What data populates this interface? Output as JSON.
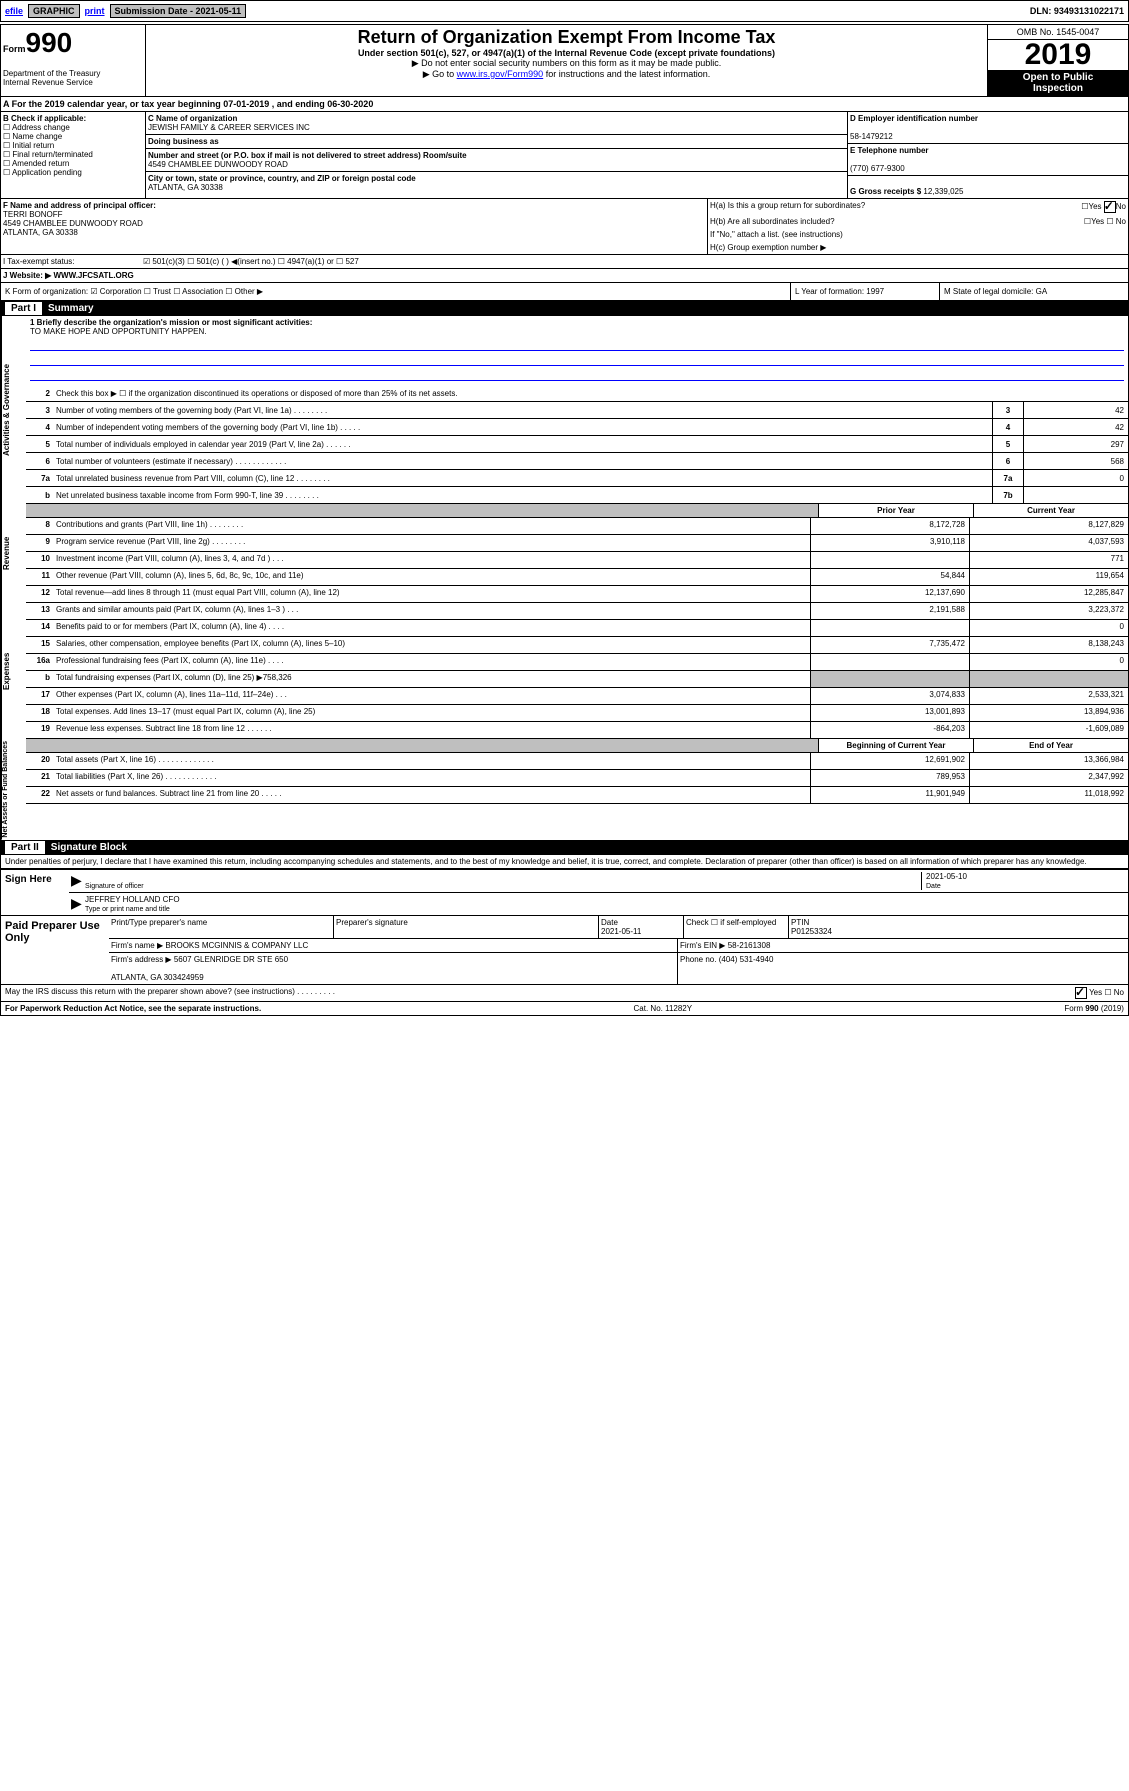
{
  "topbar": {
    "efile": "efile",
    "graphic": "GRAPHIC",
    "print": "print",
    "submission_label": "Submission Date - 2021-05-11",
    "dln": "DLN: 93493131022171"
  },
  "header": {
    "form_label": "Form",
    "form_num": "990",
    "title": "Return of Organization Exempt From Income Tax",
    "subtitle": "Under section 501(c), 527, or 4947(a)(1) of the Internal Revenue Code (except private foundations)",
    "note1": "▶ Do not enter social security numbers on this form as it may be made public.",
    "note2_pre": "▶ Go to ",
    "note2_link": "www.irs.gov/Form990",
    "note2_post": " for instructions and the latest information.",
    "dept": "Department of the Treasury\nInternal Revenue Service",
    "omb": "OMB No. 1545-0047",
    "year": "2019",
    "open": "Open to Public\nInspection"
  },
  "period": "A For the 2019 calendar year, or tax year beginning 07-01-2019     , and ending 06-30-2020",
  "b": {
    "label": "B Check if applicable:",
    "items": [
      "☐ Address change",
      "☐ Name change",
      "☐ Initial return",
      "☐ Final return/terminated",
      "☐ Amended return",
      "☐ Application pending"
    ]
  },
  "c": {
    "name_label": "C Name of organization",
    "name": "JEWISH FAMILY & CAREER SERVICES INC",
    "dba_label": "Doing business as",
    "dba": "",
    "addr_label": "Number and street (or P.O. box if mail is not delivered to street address)       Room/suite",
    "addr": "4549 CHAMBLEE DUNWOODY ROAD",
    "city_label": "City or town, state or province, country, and ZIP or foreign postal code",
    "city": "ATLANTA, GA  30338"
  },
  "d": {
    "label": "D Employer identification number",
    "value": "58-1479212"
  },
  "e": {
    "label": "E Telephone number",
    "value": "(770) 677-9300"
  },
  "g": {
    "label": "G Gross receipts $",
    "value": "12,339,025"
  },
  "f": {
    "label": "F  Name and address of principal officer:",
    "name": "TERRI BONOFF",
    "addr": "4549 CHAMBLEE DUNWOODY ROAD\nATLANTA, GA  30338"
  },
  "h": {
    "a": "H(a)  Is this a group return for subordinates?",
    "a_ans_yes": "Yes",
    "a_ans_no": "No",
    "b": "H(b)  Are all subordinates included?",
    "b_ans": "Yes    ☐ No",
    "b_note": "If \"No,\" attach a list. (see instructions)",
    "c": "H(c)  Group exemption number ▶"
  },
  "i": {
    "label": "I    Tax-exempt status:",
    "opts": "☑ 501(c)(3)   ☐ 501(c) (  ) ◀(insert no.)   ☐ 4947(a)(1) or   ☐ 527"
  },
  "j": {
    "label": "J    Website: ▶",
    "value": "WWW.JFCSATL.ORG"
  },
  "k": {
    "text": "K Form of organization:  ☑ Corporation  ☐ Trust  ☐ Association  ☐ Other ▶"
  },
  "l": {
    "text": "L Year of formation: 1997"
  },
  "m": {
    "text": "M State of legal domicile: GA"
  },
  "part1": {
    "label": "Part I",
    "title": "Summary"
  },
  "mission": {
    "q": "1  Briefly describe the organization's mission or most significant activities:",
    "a": "TO MAKE HOPE AND OPPORTUNITY HAPPEN."
  },
  "line2": "Check this box ▶ ☐  if the organization discontinued its operations or disposed of more than 25% of its net assets.",
  "govlines": [
    {
      "n": "3",
      "t": "Number of voting members of the governing body (Part VI, line 1a)  .   .   .   .   .   .   .   .",
      "bn": "3",
      "v": "42"
    },
    {
      "n": "4",
      "t": "Number of independent voting members of the governing body (Part VI, line 1b)  .   .   .   .   .",
      "bn": "4",
      "v": "42"
    },
    {
      "n": "5",
      "t": "Total number of individuals employed in calendar year 2019 (Part V, line 2a)  .   .   .   .   .   .",
      "bn": "5",
      "v": "297"
    },
    {
      "n": "6",
      "t": "Total number of volunteers (estimate if necessary)  .   .   .   .   .   .   .   .   .   .   .   .",
      "bn": "6",
      "v": "568"
    },
    {
      "n": "7a",
      "t": "Total unrelated business revenue from Part VIII, column (C), line 12  .   .   .   .   .   .   .   .",
      "bn": "7a",
      "v": "0"
    },
    {
      "n": "b",
      "t": "Net unrelated business taxable income from Form 990-T, line 39   .   .   .   .   .   .   .   .",
      "bn": "7b",
      "v": ""
    }
  ],
  "twocolhdr": {
    "prior": "Prior Year",
    "curr": "Current Year"
  },
  "revenue": [
    {
      "n": "8",
      "t": "Contributions and grants (Part VIII, line 1h)  .   .   .   .   .   .   .   .",
      "p": "8,172,728",
      "c": "8,127,829"
    },
    {
      "n": "9",
      "t": "Program service revenue (Part VIII, line 2g)  .   .   .   .   .   .   .   .",
      "p": "3,910,118",
      "c": "4,037,593"
    },
    {
      "n": "10",
      "t": "Investment income (Part VIII, column (A), lines 3, 4, and 7d )  .   .   .",
      "p": "",
      "c": "771"
    },
    {
      "n": "11",
      "t": "Other revenue (Part VIII, column (A), lines 5, 6d, 8c, 9c, 10c, and 11e)",
      "p": "54,844",
      "c": "119,654"
    },
    {
      "n": "12",
      "t": "Total revenue—add lines 8 through 11 (must equal Part VIII, column (A), line 12)",
      "p": "12,137,690",
      "c": "12,285,847"
    }
  ],
  "expenses": [
    {
      "n": "13",
      "t": "Grants and similar amounts paid (Part IX, column (A), lines 1–3 )  .   .   .",
      "p": "2,191,588",
      "c": "3,223,372"
    },
    {
      "n": "14",
      "t": "Benefits paid to or for members (Part IX, column (A), line 4)  .   .   .   .",
      "p": "",
      "c": "0"
    },
    {
      "n": "15",
      "t": "Salaries, other compensation, employee benefits (Part IX, column (A), lines 5–10)",
      "p": "7,735,472",
      "c": "8,138,243"
    },
    {
      "n": "16a",
      "t": "Professional fundraising fees (Part IX, column (A), line 11e)  .   .   .   .",
      "p": "",
      "c": "0"
    },
    {
      "n": "b",
      "t": "Total fundraising expenses (Part IX, column (D), line 25) ▶758,326",
      "p": "gray",
      "c": "gray"
    },
    {
      "n": "17",
      "t": "Other expenses (Part IX, column (A), lines 11a–11d, 11f–24e)  .   .   .",
      "p": "3,074,833",
      "c": "2,533,321"
    },
    {
      "n": "18",
      "t": "Total expenses. Add lines 13–17 (must equal Part IX, column (A), line 25)",
      "p": "13,001,893",
      "c": "13,894,936"
    },
    {
      "n": "19",
      "t": "Revenue less expenses. Subtract line 18 from line 12  .   .   .   .   .   .",
      "p": "-864,203",
      "c": "-1,609,089"
    }
  ],
  "nethdr": {
    "prior": "Beginning of Current Year",
    "curr": "End of Year"
  },
  "net": [
    {
      "n": "20",
      "t": "Total assets (Part X, line 16)  .   .   .   .   .   .   .   .   .   .   .   .   .",
      "p": "12,691,902",
      "c": "13,366,984"
    },
    {
      "n": "21",
      "t": "Total liabilities (Part X, line 26)  .   .   .   .   .   .   .   .   .   .   .   .",
      "p": "789,953",
      "c": "2,347,992"
    },
    {
      "n": "22",
      "t": "Net assets or fund balances. Subtract line 21 from line 20  .   .   .   .   .",
      "p": "11,901,949",
      "c": "11,018,992"
    }
  ],
  "part2": {
    "label": "Part II",
    "title": "Signature Block"
  },
  "penalty": "Under penalties of perjury, I declare that I have examined this return, including accompanying schedules and statements, and to the best of my knowledge and belief, it is true, correct, and complete. Declaration of preparer (other than officer) is based on all information of which preparer has any knowledge.",
  "sign": {
    "label": "Sign Here",
    "sig_label": "Signature of officer",
    "date": "2021-05-10",
    "date_label": "Date",
    "name": "JEFFREY HOLLAND CFO",
    "name_label": "Type or print name and title"
  },
  "prep": {
    "label": "Paid Preparer Use Only",
    "h1": "Print/Type preparer's name",
    "h2": "Preparer's signature",
    "h3": "Date",
    "h3v": "2021-05-11",
    "h4": "Check ☐ if self-employed",
    "h5": "PTIN",
    "h5v": "P01253324",
    "firm_label": "Firm's name    ▶",
    "firm": "BROOKS MCGINNIS & COMPANY LLC",
    "ein_label": "Firm's EIN ▶",
    "ein": "58-2161308",
    "addr_label": "Firm's address ▶",
    "addr": "5607 GLENRIDGE DR STE 650\n\nATLANTA, GA  303424959",
    "phone_label": "Phone no.",
    "phone": "(404) 531-4940"
  },
  "discuss": {
    "text": "May the IRS discuss this return with the preparer shown above? (see instructions)  .   .   .   .   .   .   .   .   .",
    "yes": "Yes",
    "no": "No"
  },
  "footer": {
    "left": "For Paperwork Reduction Act Notice, see the separate instructions.",
    "mid": "Cat. No. 11282Y",
    "right": "Form 990 (2019)"
  },
  "sidelabels": {
    "gov": "Activities & Governance",
    "rev": "Revenue",
    "exp": "Expenses",
    "net": "Net Assets or Fund Balances"
  }
}
